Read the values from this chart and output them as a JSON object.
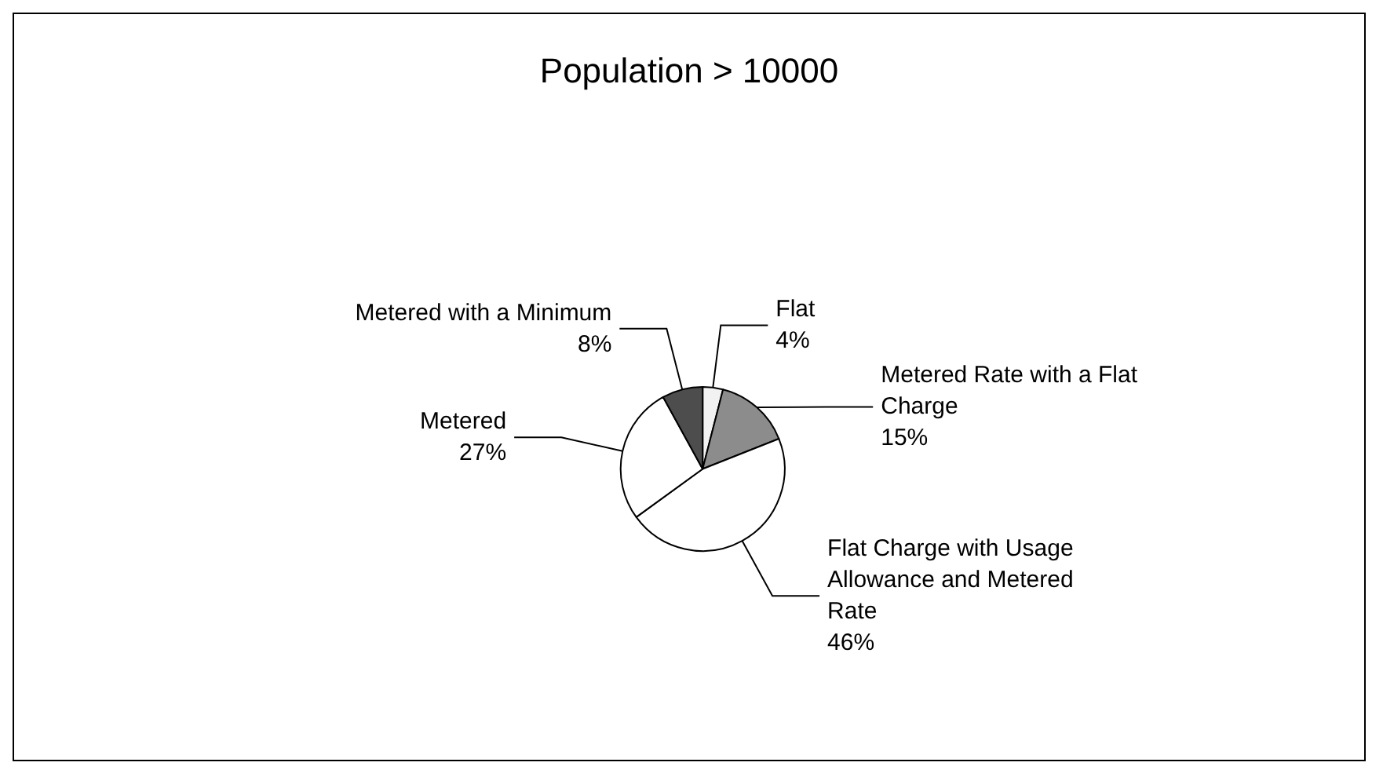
{
  "chart_data": {
    "type": "pie",
    "title": "Population > 10000",
    "categories": [
      "Flat",
      "Metered Rate with a Flat Charge",
      "Flat Charge with Usage Allowance and Metered Rate",
      "Metered",
      "Metered with a Minimum"
    ],
    "values": [
      4,
      15,
      46,
      27,
      8
    ],
    "colors": [
      "#f2f2f2",
      "#8c8c8c",
      "#ffffff",
      "#ffffff",
      "#4d4d4d"
    ],
    "value_labels": [
      "4%",
      "15%",
      "46%",
      "27%",
      "8%"
    ],
    "legend": false
  }
}
